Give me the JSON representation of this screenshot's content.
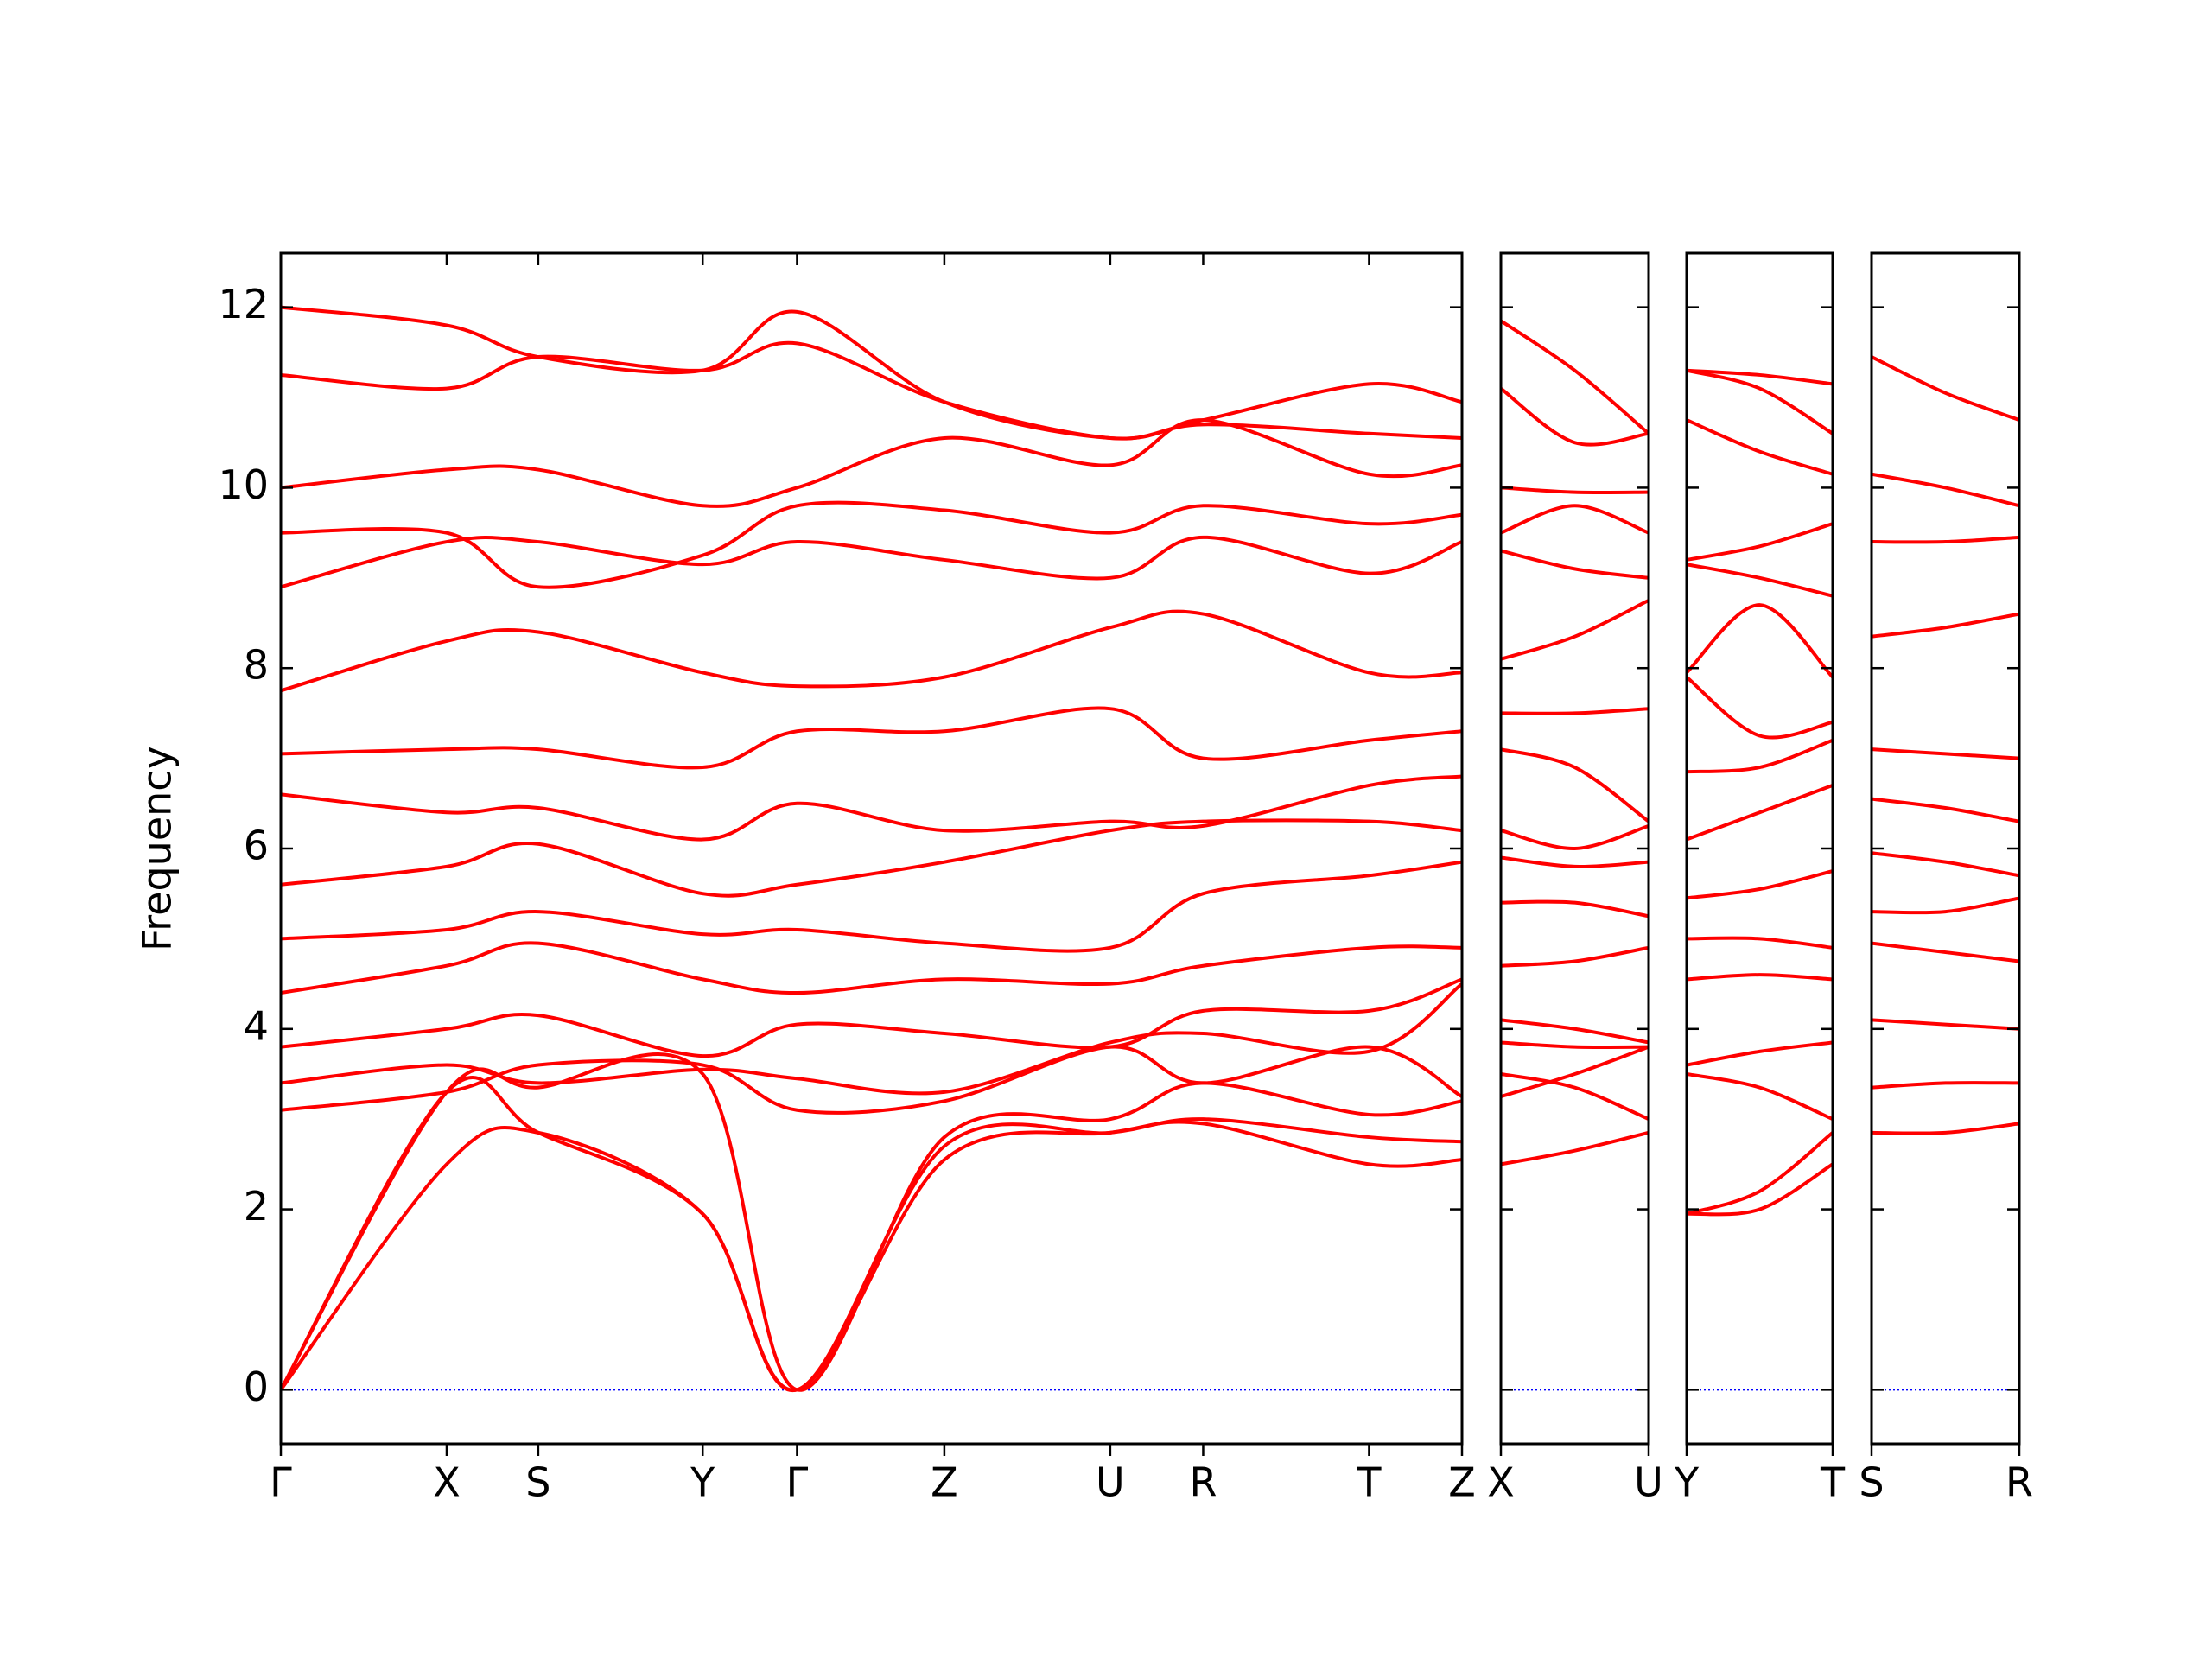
{
  "chart_data": [
    {
      "type": "line",
      "ylabel": "Frequency",
      "color": "#ff0000",
      "x": [
        0,
        1.16,
        1.8,
        2.95,
        3.61,
        4.64,
        5.8,
        6.45,
        7.61,
        8.26
      ],
      "xlim": [
        0,
        8.26
      ],
      "xticks": [
        {
          "value": 0,
          "label": "Γ"
        },
        {
          "value": 1.16,
          "label": "X"
        },
        {
          "value": 1.8,
          "label": "S"
        },
        {
          "value": 2.95,
          "label": "Y"
        },
        {
          "value": 3.61,
          "label": "Γ"
        },
        {
          "value": 4.64,
          "label": "Z"
        },
        {
          "value": 5.8,
          "label": "U"
        },
        {
          "value": 6.45,
          "label": "R"
        },
        {
          "value": 7.61,
          "label": "T"
        },
        {
          "value": 8.26,
          "label": "Z"
        }
      ],
      "ylim": [
        -0.6,
        12.6
      ],
      "yticks": [
        0,
        2,
        4,
        6,
        8,
        10,
        12
      ],
      "hline": {
        "value": 0,
        "color": "#0000ff"
      },
      "series": [
        {
          "values": [
            0,
            2.5,
            2.85,
            1.95,
            0,
            2.55,
            2.85,
            2.95,
            2.5,
            2.55
          ]
        },
        {
          "values": [
            0,
            3.3,
            2.85,
            1.95,
            0,
            2.7,
            2.85,
            3.0,
            2.8,
            2.75
          ]
        },
        {
          "values": [
            0,
            3.3,
            3.35,
            3.5,
            0,
            2.8,
            3.0,
            3.4,
            3.05,
            3.2
          ]
        },
        {
          "values": [
            3.1,
            3.3,
            3.6,
            3.6,
            3.1,
            3.2,
            3.8,
            3.4,
            3.8,
            3.25
          ]
        },
        {
          "values": [
            3.4,
            3.6,
            3.4,
            3.55,
            3.45,
            3.3,
            3.85,
            3.95,
            3.75,
            4.5
          ]
        },
        {
          "values": [
            3.8,
            4.0,
            4.15,
            3.7,
            4.05,
            3.95,
            3.8,
            4.2,
            4.2,
            4.55
          ]
        },
        {
          "values": [
            4.4,
            4.7,
            4.95,
            4.55,
            4.4,
            4.55,
            4.5,
            4.7,
            4.9,
            4.9
          ]
        },
        {
          "values": [
            5.0,
            5.1,
            5.3,
            5.05,
            5.1,
            4.95,
            4.9,
            5.5,
            5.7,
            5.85
          ]
        },
        {
          "values": [
            5.6,
            5.8,
            6.05,
            5.5,
            5.6,
            5.85,
            6.2,
            6.3,
            6.3,
            6.2
          ]
        },
        {
          "values": [
            6.6,
            6.4,
            6.45,
            6.1,
            6.5,
            6.2,
            6.3,
            6.25,
            6.7,
            6.8
          ]
        },
        {
          "values": [
            7.05,
            7.1,
            7.1,
            6.9,
            7.3,
            7.3,
            7.55,
            7.0,
            7.2,
            7.3
          ]
        },
        {
          "values": [
            7.75,
            8.3,
            8.4,
            7.95,
            7.8,
            7.9,
            8.45,
            8.6,
            7.95,
            7.95
          ]
        },
        {
          "values": [
            8.9,
            9.4,
            9.4,
            9.15,
            9.4,
            9.2,
            9.0,
            9.45,
            9.05,
            9.4
          ]
        },
        {
          "values": [
            9.5,
            9.5,
            8.9,
            9.25,
            9.8,
            9.75,
            9.5,
            9.8,
            9.6,
            9.7
          ]
        },
        {
          "values": [
            10.0,
            10.2,
            10.2,
            9.8,
            10.0,
            10.55,
            10.25,
            10.75,
            10.15,
            10.25
          ]
        },
        {
          "values": [
            11.25,
            11.1,
            11.45,
            11.3,
            11.6,
            10.95,
            10.55,
            10.7,
            10.6,
            10.55
          ]
        },
        {
          "values": [
            12.0,
            11.8,
            11.45,
            11.3,
            11.95,
            10.95,
            10.55,
            10.75,
            11.15,
            10.95
          ]
        }
      ]
    },
    {
      "type": "line",
      "color": "#ff0000",
      "x": [
        0,
        0.515,
        1.03
      ],
      "xlim": [
        0,
        1.03
      ],
      "xticks": [
        {
          "value": 0,
          "label": "X"
        },
        {
          "value": 1.03,
          "label": "U"
        }
      ],
      "ylim": [
        -0.6,
        12.6
      ],
      "yticks": [
        0,
        2,
        4,
        6,
        8,
        10,
        12
      ],
      "hline": {
        "value": 0,
        "color": "#0000ff"
      },
      "series": [
        {
          "values": [
            2.5,
            2.65,
            2.85
          ]
        },
        {
          "values": [
            3.25,
            3.5,
            3.8
          ]
        },
        {
          "values": [
            3.5,
            3.35,
            3.0
          ]
        },
        {
          "values": [
            3.85,
            3.8,
            3.8
          ]
        },
        {
          "values": [
            4.1,
            4.0,
            3.85
          ]
        },
        {
          "values": [
            4.7,
            4.75,
            4.9
          ]
        },
        {
          "values": [
            5.4,
            5.4,
            5.25
          ]
        },
        {
          "values": [
            5.9,
            5.8,
            5.85
          ]
        },
        {
          "values": [
            6.2,
            6.0,
            6.25
          ]
        },
        {
          "values": [
            7.1,
            6.9,
            6.3
          ]
        },
        {
          "values": [
            7.5,
            7.5,
            7.55
          ]
        },
        {
          "values": [
            8.1,
            8.35,
            8.75
          ]
        },
        {
          "values": [
            9.3,
            9.1,
            9.0
          ]
        },
        {
          "values": [
            9.5,
            9.8,
            9.5
          ]
        },
        {
          "values": [
            10.0,
            9.95,
            9.95
          ]
        },
        {
          "values": [
            11.1,
            10.5,
            10.6
          ]
        },
        {
          "values": [
            11.85,
            11.3,
            10.6
          ]
        }
      ]
    },
    {
      "type": "line",
      "color": "#ff0000",
      "x": [
        0,
        0.51,
        1.02
      ],
      "xlim": [
        0,
        1.02
      ],
      "xticks": [
        {
          "value": 0,
          "label": "Y"
        },
        {
          "value": 1.02,
          "label": "T"
        }
      ],
      "ylim": [
        -0.6,
        12.6
      ],
      "yticks": [
        0,
        2,
        4,
        6,
        8,
        10,
        12
      ],
      "hline": {
        "value": 0,
        "color": "#0000ff"
      },
      "series": [
        {
          "values": [
            1.95,
            2.0,
            2.5
          ]
        },
        {
          "values": [
            1.95,
            2.2,
            2.85
          ]
        },
        {
          "values": [
            3.5,
            3.35,
            3.0
          ]
        },
        {
          "values": [
            3.6,
            3.75,
            3.85
          ]
        },
        {
          "values": [
            4.55,
            4.6,
            4.55
          ]
        },
        {
          "values": [
            5.0,
            5.0,
            4.9
          ]
        },
        {
          "values": [
            5.45,
            5.55,
            5.75
          ]
        },
        {
          "values": [
            6.1,
            6.4,
            6.7
          ]
        },
        {
          "values": [
            6.85,
            6.9,
            7.2
          ]
        },
        {
          "values": [
            7.9,
            7.25,
            7.4
          ]
        },
        {
          "values": [
            7.95,
            8.7,
            7.9
          ]
        },
        {
          "values": [
            9.15,
            9.0,
            8.8
          ]
        },
        {
          "values": [
            9.2,
            9.35,
            9.6
          ]
        },
        {
          "values": [
            10.75,
            10.4,
            10.15
          ]
        },
        {
          "values": [
            11.3,
            11.1,
            10.6
          ]
        },
        {
          "values": [
            11.3,
            11.25,
            11.15
          ]
        }
      ]
    },
    {
      "type": "line",
      "color": "#ff0000",
      "x": [
        0,
        0.515,
        1.03
      ],
      "xlim": [
        0,
        1.03
      ],
      "xticks": [
        {
          "value": 0,
          "label": "S"
        },
        {
          "value": 1.03,
          "label": "R"
        }
      ],
      "ylim": [
        -0.6,
        12.6
      ],
      "yticks": [
        0,
        2,
        4,
        6,
        8,
        10,
        12
      ],
      "hline": {
        "value": 0,
        "color": "#0000ff"
      },
      "series": [
        {
          "values": [
            2.85,
            2.85,
            2.95
          ]
        },
        {
          "values": [
            3.35,
            3.4,
            3.4
          ]
        },
        {
          "values": [
            4.1,
            4.05,
            4.0
          ]
        },
        {
          "values": [
            4.95,
            4.85,
            4.75
          ]
        },
        {
          "values": [
            5.3,
            5.3,
            5.45
          ]
        },
        {
          "values": [
            5.95,
            5.85,
            5.7
          ]
        },
        {
          "values": [
            6.55,
            6.45,
            6.3
          ]
        },
        {
          "values": [
            7.1,
            7.05,
            7.0
          ]
        },
        {
          "values": [
            8.35,
            8.45,
            8.6
          ]
        },
        {
          "values": [
            9.4,
            9.4,
            9.45
          ]
        },
        {
          "values": [
            10.15,
            10.0,
            9.8
          ]
        },
        {
          "values": [
            11.45,
            11.05,
            10.75
          ]
        }
      ]
    }
  ]
}
